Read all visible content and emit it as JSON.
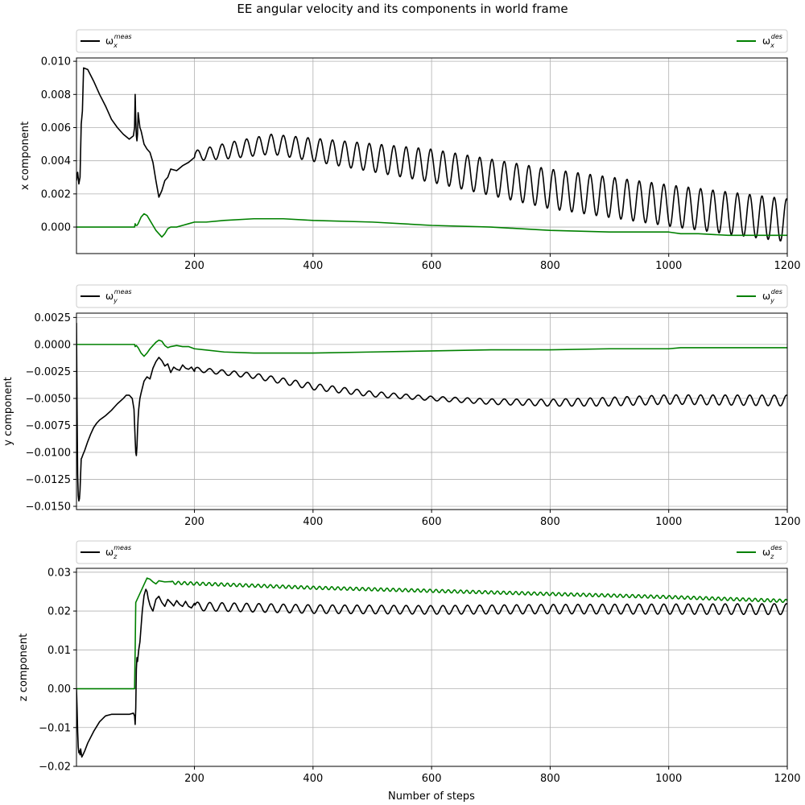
{
  "figure": {
    "title": "EE angular velocity and its components in world frame",
    "xlabel": "Number of steps"
  },
  "colors": {
    "measured": "#000000",
    "desired": "#008000",
    "grid": "#b0b0b0"
  },
  "chart_data": [
    {
      "type": "line",
      "ylabel": "x component",
      "xlim": [
        1,
        1200
      ],
      "ylim": [
        -0.0016,
        0.0102
      ],
      "xticks": [
        200,
        400,
        600,
        800,
        1000,
        1200
      ],
      "yticks": [
        0.0,
        0.002,
        0.004,
        0.006,
        0.008,
        0.01
      ],
      "ytick_labels": [
        "0.000",
        "0.002",
        "0.004",
        "0.006",
        "0.008",
        "0.010"
      ],
      "grid": true,
      "legend": {
        "left": "ω_x^meas",
        "right": "ω_x^des"
      },
      "series": [
        {
          "name": "ω_x^meas",
          "color": "#000000",
          "x": [
            1,
            3,
            5,
            7,
            9,
            11,
            13,
            20,
            30,
            40,
            50,
            60,
            70,
            80,
            90,
            97,
            99,
            100,
            101,
            102,
            103,
            104,
            105,
            106,
            108,
            110,
            115,
            120,
            125,
            130,
            135,
            140,
            145,
            150,
            155,
            160,
            170,
            180,
            190,
            200
          ],
          "y": [
            0.0028,
            0.0033,
            0.0026,
            0.003,
            0.0062,
            0.007,
            0.0096,
            0.0095,
            0.0088,
            0.008,
            0.0073,
            0.0065,
            0.006,
            0.0056,
            0.0053,
            0.0055,
            0.006,
            0.008,
            0.0065,
            0.0055,
            0.0052,
            0.0056,
            0.0069,
            0.0066,
            0.006,
            0.0058,
            0.005,
            0.0047,
            0.0045,
            0.0039,
            0.0028,
            0.0018,
            0.0022,
            0.0028,
            0.003,
            0.0035,
            0.0034,
            0.0037,
            0.0039,
            0.0042
          ],
          "osc": {
            "start": 200,
            "end": 1200,
            "period": 20.7,
            "center": [
              [
                200,
                0.0043
              ],
              [
                330,
                0.005
              ],
              [
                600,
                0.0037
              ],
              [
                800,
                0.0023
              ],
              [
                1000,
                0.0013
              ],
              [
                1200,
                0.0004
              ]
            ],
            "amp": [
              [
                200,
                0.0003
              ],
              [
                260,
                0.0005
              ],
              [
                400,
                0.0007
              ],
              [
                600,
                0.001
              ],
              [
                800,
                0.0012
              ],
              [
                1200,
                0.0013
              ]
            ]
          }
        },
        {
          "name": "ω_x^des",
          "color": "#008000",
          "x": [
            1,
            99,
            100,
            101,
            102,
            103,
            105,
            110,
            115,
            120,
            125,
            130,
            135,
            140,
            145,
            150,
            155,
            160,
            170,
            180,
            190,
            200,
            220,
            250,
            300,
            350,
            400,
            500,
            600,
            700,
            800,
            900,
            1000,
            1020,
            1050,
            1100,
            1200
          ],
          "y": [
            0,
            0,
            0.0002,
            0.0001,
            0.0001,
            0.0001,
            0.0002,
            0.0006,
            0.0008,
            0.0007,
            0.0004,
            0.0001,
            -0.0002,
            -0.0004,
            -0.0006,
            -0.0004,
            -0.0001,
            0.0,
            0.0,
            0.0001,
            0.0002,
            0.0003,
            0.0003,
            0.0004,
            0.0005,
            0.0005,
            0.0004,
            0.0003,
            0.0001,
            -0.0,
            -0.0002,
            -0.0003,
            -0.0003,
            -0.0004,
            -0.0004,
            -0.0005,
            -0.0005
          ]
        }
      ]
    },
    {
      "type": "line",
      "ylabel": "y component",
      "xlim": [
        1,
        1200
      ],
      "ylim": [
        -0.0153,
        0.0029
      ],
      "xticks": [
        200,
        400,
        600,
        800,
        1000,
        1200
      ],
      "yticks": [
        0.0025,
        0.0,
        -0.0025,
        -0.005,
        -0.0075,
        -0.01,
        -0.0125,
        -0.015
      ],
      "ytick_labels": [
        "0.0025",
        "0.0000",
        "−0.0025",
        "−0.0050",
        "−0.0075",
        "−0.0100",
        "−0.0125",
        "−0.0150"
      ],
      "grid": true,
      "legend": {
        "left": "ω_y^meas",
        "right": "ω_y^des"
      },
      "series": [
        {
          "name": "ω_y^meas",
          "color": "#000000",
          "x": [
            1,
            2,
            3,
            4,
            5,
            6,
            7,
            8,
            9,
            10,
            12,
            15,
            20,
            25,
            30,
            35,
            40,
            50,
            60,
            70,
            80,
            85,
            90,
            95,
            98,
            100,
            101,
            102,
            103,
            104,
            105,
            106,
            107,
            108,
            110,
            115,
            120,
            125,
            130,
            135,
            140,
            145,
            150,
            155,
            160,
            165,
            170,
            175,
            180,
            185,
            190,
            195,
            200
          ],
          "y": [
            0.002,
            -0.006,
            -0.012,
            -0.014,
            -0.0145,
            -0.0143,
            -0.0135,
            -0.012,
            -0.0106,
            -0.0105,
            -0.0102,
            -0.0098,
            -0.009,
            -0.0083,
            -0.0077,
            -0.0073,
            -0.007,
            -0.0066,
            -0.0061,
            -0.0055,
            -0.005,
            -0.0047,
            -0.0047,
            -0.005,
            -0.006,
            -0.0088,
            -0.01,
            -0.0103,
            -0.0095,
            -0.008,
            -0.0068,
            -0.006,
            -0.0055,
            -0.005,
            -0.0045,
            -0.0034,
            -0.003,
            -0.0032,
            -0.0022,
            -0.0016,
            -0.0012,
            -0.0015,
            -0.002,
            -0.0018,
            -0.0026,
            -0.0021,
            -0.0023,
            -0.0024,
            -0.0019,
            -0.0022,
            -0.0023,
            -0.0021,
            -0.0025
          ],
          "osc": {
            "start": 200,
            "end": 1200,
            "period": 20.7,
            "center": [
              [
                200,
                -0.0023
              ],
              [
                300,
                -0.0029
              ],
              [
                400,
                -0.0039
              ],
              [
                500,
                -0.0046
              ],
              [
                600,
                -0.005
              ],
              [
                700,
                -0.0053
              ],
              [
                800,
                -0.0054
              ],
              [
                900,
                -0.0053
              ],
              [
                1000,
                -0.0051
              ],
              [
                1200,
                -0.0052
              ]
            ],
            "amp": [
              [
                200,
                0.0002
              ],
              [
                400,
                0.0003
              ],
              [
                600,
                0.0002
              ],
              [
                780,
                0.0003
              ],
              [
                900,
                0.0004
              ],
              [
                1200,
                0.0005
              ]
            ]
          }
        },
        {
          "name": "ω_y^des",
          "color": "#008000",
          "x": [
            1,
            99,
            100,
            102,
            105,
            110,
            115,
            120,
            125,
            130,
            135,
            140,
            145,
            150,
            155,
            160,
            170,
            180,
            190,
            200,
            250,
            300,
            400,
            500,
            600,
            700,
            800,
            900,
            1000,
            1020,
            1100,
            1200
          ],
          "y": [
            0,
            0,
            -0.0002,
            -0.0001,
            -0.0003,
            -0.0008,
            -0.0011,
            -0.0008,
            -0.0004,
            -0.0001,
            0.0002,
            0.0004,
            0.0003,
            -0.0001,
            -0.0003,
            -0.0002,
            -0.0001,
            -0.0002,
            -0.0002,
            -0.0004,
            -0.0007,
            -0.0008,
            -0.0008,
            -0.0007,
            -0.0006,
            -0.0005,
            -0.0005,
            -0.0004,
            -0.0004,
            -0.0003,
            -0.0003,
            -0.0003
          ]
        }
      ]
    },
    {
      "type": "line",
      "ylabel": "z component",
      "xlim": [
        1,
        1200
      ],
      "ylim": [
        -0.02,
        0.031
      ],
      "xticks": [
        200,
        400,
        600,
        800,
        1000,
        1200
      ],
      "yticks": [
        -0.02,
        -0.01,
        0.0,
        0.01,
        0.02,
        0.03
      ],
      "ytick_labels": [
        "−0.02",
        "−0.01",
        "0.00",
        "0.01",
        "0.02",
        "0.03"
      ],
      "grid": true,
      "legend": {
        "left": "ω_z^meas",
        "right": "ω_z^des"
      },
      "series": [
        {
          "name": "ω_z^meas",
          "color": "#000000",
          "x": [
            1,
            2,
            3,
            4,
            5,
            6,
            7,
            8,
            9,
            10,
            12,
            15,
            20,
            30,
            40,
            50,
            60,
            70,
            80,
            90,
            97,
            99,
            100,
            101,
            102,
            103,
            104,
            105,
            106,
            108,
            110,
            112,
            115,
            118,
            120,
            122,
            125,
            128,
            130,
            135,
            140,
            145,
            150,
            155,
            160,
            165,
            170,
            175,
            180,
            185,
            190,
            195,
            200
          ],
          "y": [
            0.0,
            -0.005,
            -0.011,
            -0.015,
            -0.0165,
            -0.016,
            -0.017,
            -0.0155,
            -0.0165,
            -0.0176,
            -0.017,
            -0.016,
            -0.014,
            -0.011,
            -0.0085,
            -0.007,
            -0.0066,
            -0.0066,
            -0.0066,
            -0.0066,
            -0.0063,
            -0.007,
            -0.0092,
            -0.005,
            0.005,
            0.008,
            0.007,
            0.0085,
            0.01,
            0.012,
            0.016,
            0.02,
            0.024,
            0.0256,
            0.025,
            0.0232,
            0.0215,
            0.0205,
            0.02,
            0.023,
            0.0238,
            0.0222,
            0.0212,
            0.023,
            0.0222,
            0.0213,
            0.0227,
            0.0217,
            0.0212,
            0.0225,
            0.0212,
            0.0208,
            0.022
          ],
          "osc": {
            "start": 200,
            "end": 1200,
            "period": 20.7,
            "center": [
              [
                200,
                0.0212
              ],
              [
                400,
                0.0205
              ],
              [
                600,
                0.0203
              ],
              [
                800,
                0.0205
              ],
              [
                1000,
                0.0205
              ],
              [
                1200,
                0.0205
              ]
            ],
            "amp": [
              [
                200,
                0.0011
              ],
              [
                400,
                0.0011
              ],
              [
                600,
                0.0011
              ],
              [
                800,
                0.0012
              ],
              [
                1000,
                0.0013
              ],
              [
                1200,
                0.0014
              ]
            ]
          }
        },
        {
          "name": "ω_z^des",
          "color": "#008000",
          "x": [
            1,
            99,
            100,
            101,
            120,
            125,
            130,
            135,
            140,
            150,
            160
          ],
          "y": [
            0,
            0,
            0.01,
            0.0222,
            0.0285,
            0.0282,
            0.0275,
            0.027,
            0.0278,
            0.0275,
            0.0276
          ],
          "osc": {
            "start": 160,
            "end": 1200,
            "period": 10.35,
            "center": [
              [
                160,
                0.0273
              ],
              [
                400,
                0.026
              ],
              [
                600,
                0.0252
              ],
              [
                800,
                0.0244
              ],
              [
                1000,
                0.0236
              ],
              [
                1200,
                0.0226
              ]
            ],
            "amp": [
              [
                160,
                0.0004
              ],
              [
                600,
                0.0004
              ],
              [
                1200,
                0.0004
              ]
            ]
          }
        }
      ]
    }
  ]
}
